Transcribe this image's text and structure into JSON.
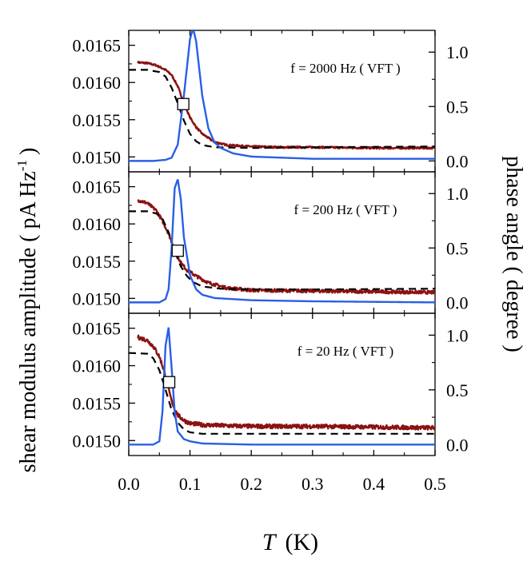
{
  "figure": {
    "ylabel_left_main": "shear modulus amplitude  ( pA Hz",
    "ylabel_left_sup": "-1",
    "ylabel_left_close": ")",
    "ylabel_right": "phase angle  ( degree )",
    "xlabel_italic": "T",
    "xlabel_unit": "(K)"
  },
  "colors": {
    "amplitude": "#8b1212",
    "phase": "#2a5fe6",
    "fit": "#000000",
    "marker_fill": "#ffffff"
  },
  "chart_data": [
    {
      "type": "line",
      "annotation": "f = 2000 Hz ( VFT )",
      "xlim": [
        0,
        0.5
      ],
      "ylim_left": [
        0.0148,
        0.0167
      ],
      "ylim_right": [
        -0.1,
        1.2
      ],
      "y_ticks_left": [
        "0.0150",
        "0.0155",
        "0.0160",
        "0.0165"
      ],
      "y_ticks_right": [
        "0.0",
        "0.5",
        "1.0"
      ],
      "series": [
        {
          "name": "shear modulus amplitude",
          "axis": "left",
          "style": "noisy",
          "x": [
            0.015,
            0.03,
            0.045,
            0.06,
            0.07,
            0.08,
            0.09,
            0.1,
            0.11,
            0.12,
            0.14,
            0.16,
            0.2,
            0.25,
            0.3,
            0.4,
            0.5
          ],
          "y": [
            0.01627,
            0.01626,
            0.01623,
            0.01617,
            0.0161,
            0.01595,
            0.01572,
            0.01553,
            0.0154,
            0.01531,
            0.0152,
            0.01516,
            0.01514,
            0.01513,
            0.01513,
            0.01512,
            0.01512
          ]
        },
        {
          "name": "VFT fit",
          "axis": "left",
          "style": "dashed",
          "x": [
            0.0,
            0.03,
            0.05,
            0.06,
            0.07,
            0.08,
            0.09,
            0.1,
            0.11,
            0.12,
            0.14,
            0.2,
            0.3,
            0.5
          ],
          "y": [
            0.01617,
            0.01617,
            0.01614,
            0.01608,
            0.01593,
            0.01572,
            0.01549,
            0.01531,
            0.01521,
            0.01516,
            0.01513,
            0.01512,
            0.01513,
            0.01514
          ]
        },
        {
          "name": "phase angle",
          "axis": "right",
          "style": "solid",
          "x": [
            0.0,
            0.04,
            0.06,
            0.07,
            0.08,
            0.09,
            0.1,
            0.105,
            0.11,
            0.12,
            0.13,
            0.14,
            0.15,
            0.17,
            0.2,
            0.3,
            0.5
          ],
          "y": [
            0.0,
            0.0,
            0.01,
            0.03,
            0.15,
            0.6,
            1.12,
            1.22,
            1.1,
            0.6,
            0.3,
            0.17,
            0.12,
            0.07,
            0.04,
            0.02,
            0.02
          ]
        },
        {
          "name": "crossover marker",
          "axis": "left",
          "style": "marker",
          "x": [
            0.089
          ],
          "y": [
            0.01571
          ]
        }
      ]
    },
    {
      "type": "line",
      "annotation": "f = 200 Hz ( VFT )",
      "xlim": [
        0,
        0.5
      ],
      "ylim_left": [
        0.0148,
        0.0167
      ],
      "ylim_right": [
        -0.1,
        1.2
      ],
      "y_ticks_left": [
        "0.0150",
        "0.0155",
        "0.0160",
        "0.0165"
      ],
      "y_ticks_right": [
        "0.0",
        "0.5",
        "1.0"
      ],
      "series": [
        {
          "name": "shear modulus amplitude",
          "axis": "left",
          "style": "noisy",
          "x": [
            0.015,
            0.03,
            0.045,
            0.055,
            0.065,
            0.075,
            0.085,
            0.095,
            0.11,
            0.13,
            0.16,
            0.2,
            0.3,
            0.4,
            0.5
          ],
          "y": [
            0.01632,
            0.01628,
            0.01618,
            0.01604,
            0.01587,
            0.01565,
            0.01548,
            0.01538,
            0.0153,
            0.01521,
            0.01514,
            0.01511,
            0.0151,
            0.01509,
            0.01508
          ]
        },
        {
          "name": "VFT fit",
          "axis": "left",
          "style": "dashed",
          "x": [
            0.0,
            0.03,
            0.045,
            0.055,
            0.065,
            0.075,
            0.085,
            0.095,
            0.105,
            0.12,
            0.15,
            0.2,
            0.3,
            0.5
          ],
          "y": [
            0.01617,
            0.01617,
            0.01614,
            0.01607,
            0.01589,
            0.01563,
            0.01543,
            0.0153,
            0.01522,
            0.01516,
            0.01513,
            0.01512,
            0.01512,
            0.01513
          ]
        },
        {
          "name": "phase angle",
          "axis": "right",
          "style": "solid",
          "x": [
            0.0,
            0.05,
            0.06,
            0.065,
            0.07,
            0.075,
            0.08,
            0.085,
            0.09,
            0.1,
            0.11,
            0.12,
            0.14,
            0.2,
            0.3,
            0.5
          ],
          "y": [
            0.0,
            0.0,
            0.03,
            0.12,
            0.5,
            1.05,
            1.13,
            0.95,
            0.6,
            0.25,
            0.12,
            0.07,
            0.04,
            0.02,
            0.01,
            0.0
          ]
        },
        {
          "name": "crossover marker",
          "axis": "left",
          "style": "marker",
          "x": [
            0.08
          ],
          "y": [
            0.01564
          ]
        }
      ]
    },
    {
      "type": "line",
      "annotation": "f = 20 Hz ( VFT )",
      "xlim": [
        0,
        0.5
      ],
      "ylim_left": [
        0.0148,
        0.0167
      ],
      "ylim_right": [
        -0.1,
        1.2
      ],
      "y_ticks_left": [
        "0.0150",
        "0.0155",
        "0.0160",
        "0.0165"
      ],
      "y_ticks_right": [
        "0.0",
        "0.5",
        "1.0"
      ],
      "series": [
        {
          "name": "shear modulus amplitude",
          "axis": "left",
          "style": "noisy",
          "x": [
            0.015,
            0.03,
            0.04,
            0.05,
            0.055,
            0.06,
            0.065,
            0.07,
            0.075,
            0.08,
            0.09,
            0.1,
            0.12,
            0.15,
            0.2,
            0.3,
            0.4,
            0.5
          ],
          "y": [
            0.01638,
            0.01634,
            0.01626,
            0.01612,
            0.016,
            0.01586,
            0.01568,
            0.01553,
            0.01542,
            0.01534,
            0.01527,
            0.01523,
            0.01521,
            0.0152,
            0.01519,
            0.01519,
            0.01518,
            0.01517
          ]
        },
        {
          "name": "VFT fit",
          "axis": "left",
          "style": "dashed",
          "x": [
            0.0,
            0.03,
            0.04,
            0.05,
            0.06,
            0.07,
            0.08,
            0.09,
            0.1,
            0.12,
            0.2,
            0.3,
            0.5
          ],
          "y": [
            0.01617,
            0.01616,
            0.0161,
            0.01594,
            0.01568,
            0.01541,
            0.01524,
            0.01515,
            0.01511,
            0.01509,
            0.01509,
            0.01509,
            0.01509
          ]
        },
        {
          "name": "phase angle",
          "axis": "right",
          "style": "solid",
          "x": [
            0.0,
            0.04,
            0.05,
            0.055,
            0.06,
            0.065,
            0.07,
            0.075,
            0.08,
            0.09,
            0.1,
            0.12,
            0.2,
            0.3,
            0.5
          ],
          "y": [
            0.0,
            0.0,
            0.03,
            0.3,
            0.9,
            1.07,
            0.7,
            0.3,
            0.12,
            0.05,
            0.03,
            0.01,
            0.0,
            0.0,
            0.0
          ]
        },
        {
          "name": "crossover marker",
          "axis": "left",
          "style": "marker",
          "x": [
            0.066
          ],
          "y": [
            0.01578
          ]
        }
      ]
    }
  ],
  "x_ticks": [
    "0.0",
    "0.1",
    "0.2",
    "0.3",
    "0.4",
    "0.5"
  ]
}
